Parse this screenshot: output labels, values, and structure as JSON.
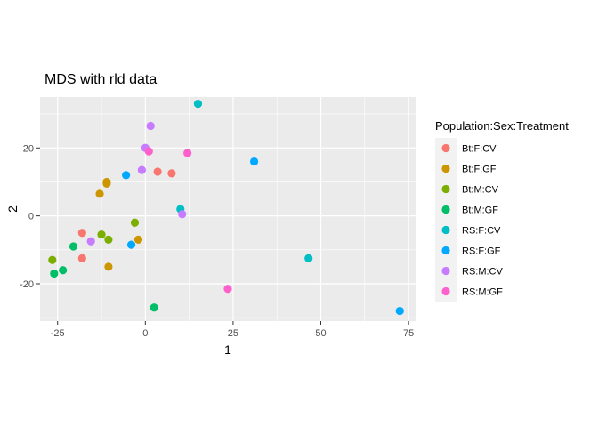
{
  "chart_data": {
    "type": "scatter",
    "title": "MDS with rld data",
    "xlabel": "1",
    "ylabel": "2",
    "xlim": [
      -30,
      77
    ],
    "ylim": [
      -31,
      35
    ],
    "x_ticks": [
      -25,
      0,
      25,
      50,
      75
    ],
    "y_ticks": [
      -20,
      0,
      20
    ],
    "grid": true,
    "legend": {
      "title": "Population:Sex:Treatment",
      "placement": "right"
    },
    "series": [
      {
        "name": "Bt:F:CV",
        "color": "#F8766D",
        "points": [
          [
            -18,
            -5
          ],
          [
            -18,
            -12.5
          ],
          [
            3.5,
            13
          ],
          [
            7.5,
            12.5
          ]
        ]
      },
      {
        "name": "Bt:F:GF",
        "color": "#CD9600",
        "points": [
          [
            -11,
            9.5
          ],
          [
            -11,
            10
          ],
          [
            -13,
            6.5
          ],
          [
            -2,
            -7
          ],
          [
            -10.5,
            -15
          ]
        ]
      },
      {
        "name": "Bt:M:CV",
        "color": "#7CAE00",
        "points": [
          [
            -26.5,
            -13
          ],
          [
            -12.5,
            -5.5
          ],
          [
            -10.5,
            -7
          ],
          [
            -3,
            -2
          ]
        ]
      },
      {
        "name": "Bt:M:GF",
        "color": "#00BE67",
        "points": [
          [
            -26,
            -17
          ],
          [
            -23.5,
            -16
          ],
          [
            -20.5,
            -9
          ],
          [
            2.5,
            -27
          ]
        ]
      },
      {
        "name": "RS:F:CV",
        "color": "#00BFC4",
        "points": [
          [
            15,
            33
          ],
          [
            10,
            2
          ],
          [
            46.5,
            -12.5
          ]
        ]
      },
      {
        "name": "RS:F:GF",
        "color": "#00A9FF",
        "points": [
          [
            -5.5,
            12
          ],
          [
            -4,
            -8.5
          ],
          [
            31,
            16
          ],
          [
            72.5,
            -28
          ]
        ]
      },
      {
        "name": "RS:M:CV",
        "color": "#C77CFF",
        "points": [
          [
            1.5,
            26.5
          ],
          [
            0,
            20
          ],
          [
            -1,
            13.5
          ],
          [
            10.5,
            0.5
          ],
          [
            -15.5,
            -7.5
          ]
        ]
      },
      {
        "name": "RS:M:GF",
        "color": "#FF61CC",
        "points": [
          [
            1,
            19
          ],
          [
            12,
            18.5
          ],
          [
            23.5,
            -21.5
          ]
        ]
      }
    ]
  }
}
